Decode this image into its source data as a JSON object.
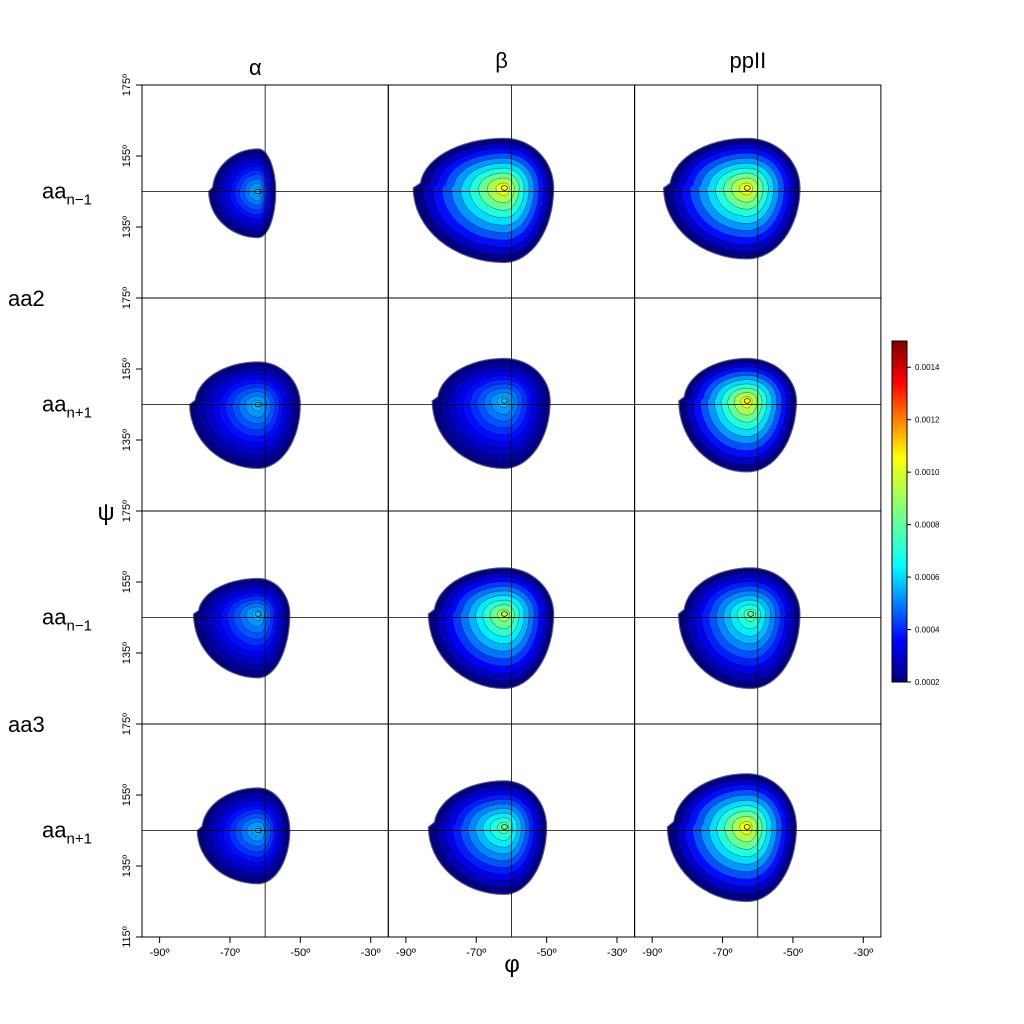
{
  "chart_data": {
    "type": "heatmap",
    "subtype": "density-contour-grid",
    "column_titles": [
      "α",
      "β",
      "ppII"
    ],
    "row_groups": [
      {
        "label": "aa2",
        "rows": [
          {
            "base": "aa",
            "sub": "n−1"
          },
          {
            "base": "aa",
            "sub": "n+1"
          }
        ]
      },
      {
        "label": "aa3",
        "rows": [
          {
            "base": "aa",
            "sub": "n−1"
          },
          {
            "base": "aa",
            "sub": "n+1"
          }
        ]
      }
    ],
    "xlabel": "φ",
    "ylabel": "ψ",
    "xlim": [
      -95,
      -25
    ],
    "ylim": [
      115,
      175
    ],
    "x_ticks": [
      -90,
      -70,
      -50,
      -30
    ],
    "x_tick_labels": [
      "-90º",
      "-70º",
      "-50º",
      "-30º"
    ],
    "y_ticks": [
      135,
      155,
      175
    ],
    "y_tick_labels": [
      "135º",
      "155º",
      "175º"
    ],
    "y_bottom_tick_label": "115º",
    "reference_lines": {
      "phi": -60,
      "psi": 145
    },
    "colorbar": {
      "colormap": "jet",
      "range": [
        0.0002,
        0.0015
      ],
      "ticks": [
        0.0002,
        0.0004,
        0.0006,
        0.0008,
        0.001,
        0.0012,
        0.0014
      ],
      "tick_labels": [
        "0.0002",
        "0.0004",
        "0.0006",
        "0.0008",
        "0.0010",
        "0.0012",
        "0.0014"
      ]
    },
    "panels": [
      {
        "row": 0,
        "col": 0,
        "phi_peak": -62,
        "psi_peak": 145,
        "phi_extent": [
          -75,
          -57
        ],
        "psi_extent": [
          132,
          157
        ],
        "peak_density": 0.0006
      },
      {
        "row": 0,
        "col": 1,
        "phi_peak": -62,
        "psi_peak": 146,
        "phi_extent": [
          -86,
          -48
        ],
        "psi_extent": [
          125,
          160
        ],
        "peak_density": 0.001
      },
      {
        "row": 0,
        "col": 2,
        "phi_peak": -63,
        "psi_peak": 146,
        "phi_extent": [
          -85,
          -48
        ],
        "psi_extent": [
          126,
          160
        ],
        "peak_density": 0.001
      },
      {
        "row": 1,
        "col": 0,
        "phi_peak": -62,
        "psi_peak": 145,
        "phi_extent": [
          -80,
          -50
        ],
        "psi_extent": [
          127,
          157
        ],
        "peak_density": 0.0006
      },
      {
        "row": 1,
        "col": 1,
        "phi_peak": -62,
        "psi_peak": 146,
        "phi_extent": [
          -81,
          -49
        ],
        "psi_extent": [
          127,
          158
        ],
        "peak_density": 0.0006
      },
      {
        "row": 1,
        "col": 2,
        "phi_peak": -63,
        "psi_peak": 146,
        "phi_extent": [
          -81,
          -49
        ],
        "psi_extent": [
          126,
          158
        ],
        "peak_density": 0.001
      },
      {
        "row": 2,
        "col": 0,
        "phi_peak": -62,
        "psi_peak": 146,
        "phi_extent": [
          -79,
          -53
        ],
        "psi_extent": [
          128,
          156
        ],
        "peak_density": 0.0006
      },
      {
        "row": 2,
        "col": 1,
        "phi_peak": -62,
        "psi_peak": 146,
        "phi_extent": [
          -82,
          -48
        ],
        "psi_extent": [
          125,
          159
        ],
        "peak_density": 0.0009
      },
      {
        "row": 2,
        "col": 2,
        "phi_peak": -62,
        "psi_peak": 146,
        "phi_extent": [
          -81,
          -48
        ],
        "psi_extent": [
          125,
          159
        ],
        "peak_density": 0.0008
      },
      {
        "row": 3,
        "col": 0,
        "phi_peak": -62,
        "psi_peak": 145,
        "phi_extent": [
          -78,
          -53
        ],
        "psi_extent": [
          130,
          157
        ],
        "peak_density": 0.0006
      },
      {
        "row": 3,
        "col": 1,
        "phi_peak": -62,
        "psi_peak": 146,
        "phi_extent": [
          -82,
          -50
        ],
        "psi_extent": [
          127,
          159
        ],
        "peak_density": 0.0008
      },
      {
        "row": 3,
        "col": 2,
        "phi_peak": -63,
        "psi_peak": 146,
        "phi_extent": [
          -84,
          -49
        ],
        "psi_extent": [
          125,
          161
        ],
        "peak_density": 0.001
      }
    ]
  }
}
